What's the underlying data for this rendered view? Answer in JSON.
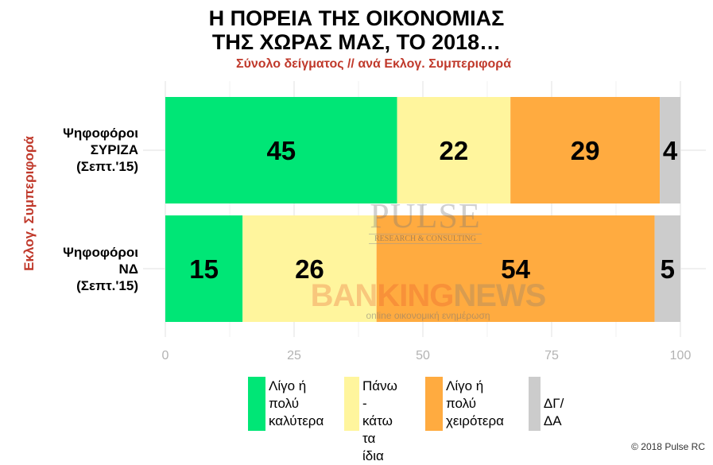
{
  "title_line1": "Η ΠΟΡΕΙΑ ΤΗΣ ΟΙΚΟΝΟΜΙΑΣ",
  "title_line2": "ΤΗΣ ΧΩΡΑΣ ΜΑΣ, ΤΟ 2018…",
  "subtitle": "Σύνολο δείγματος // ανά Εκλογ. Συμπεριφορά",
  "y_axis_title": "Εκλογ. Συμπεριφορά",
  "credit": "© 2018 Pulse RC",
  "watermark": {
    "pulse": "PULSE",
    "pulse_sub": "RESEARCH & CONSULTING",
    "banking": "BANKING",
    "news": "NEWS",
    "banking_sub": "online οικονομική ενημέρωση"
  },
  "colors": {
    "better": "#00e676",
    "same": "#fff59d",
    "worse": "#ffab40",
    "dk": "#cccccc",
    "accent": "#c0392b"
  },
  "chart_data": {
    "type": "bar",
    "orientation": "horizontal",
    "stacked": true,
    "categories": [
      [
        "Ψηφοφόροι",
        "ΣΥΡΙΖΑ",
        "(Σεπτ.'15)"
      ],
      [
        "Ψηφοφόροι",
        "ΝΔ",
        "(Σεπτ.'15)"
      ]
    ],
    "series": [
      {
        "name": "Λίγο ή πολύ καλύτερα",
        "color": "#00e676",
        "values": [
          45,
          15
        ]
      },
      {
        "name": "Πάνω - κάτω τα ίδια",
        "color": "#fff59d",
        "values": [
          22,
          26
        ]
      },
      {
        "name": "Λίγο ή πολύ χειρότερα",
        "color": "#ffab40",
        "values": [
          29,
          54
        ]
      },
      {
        "name": "ΔΓ/ΔΑ",
        "color": "#cccccc",
        "values": [
          4,
          5
        ]
      }
    ],
    "xlim": [
      0,
      100
    ],
    "xticks": [
      0,
      25,
      50,
      75,
      100
    ],
    "grid": true,
    "legend_position": "bottom"
  },
  "legend_labels": [
    "Λίγο ή\nπολύ\nκαλύτερα",
    "Πάνω -\nκάτω\nτα ίδια",
    "Λίγο ή\nπολύ\nχειρότερα",
    "ΔΓ/ΔΑ"
  ]
}
